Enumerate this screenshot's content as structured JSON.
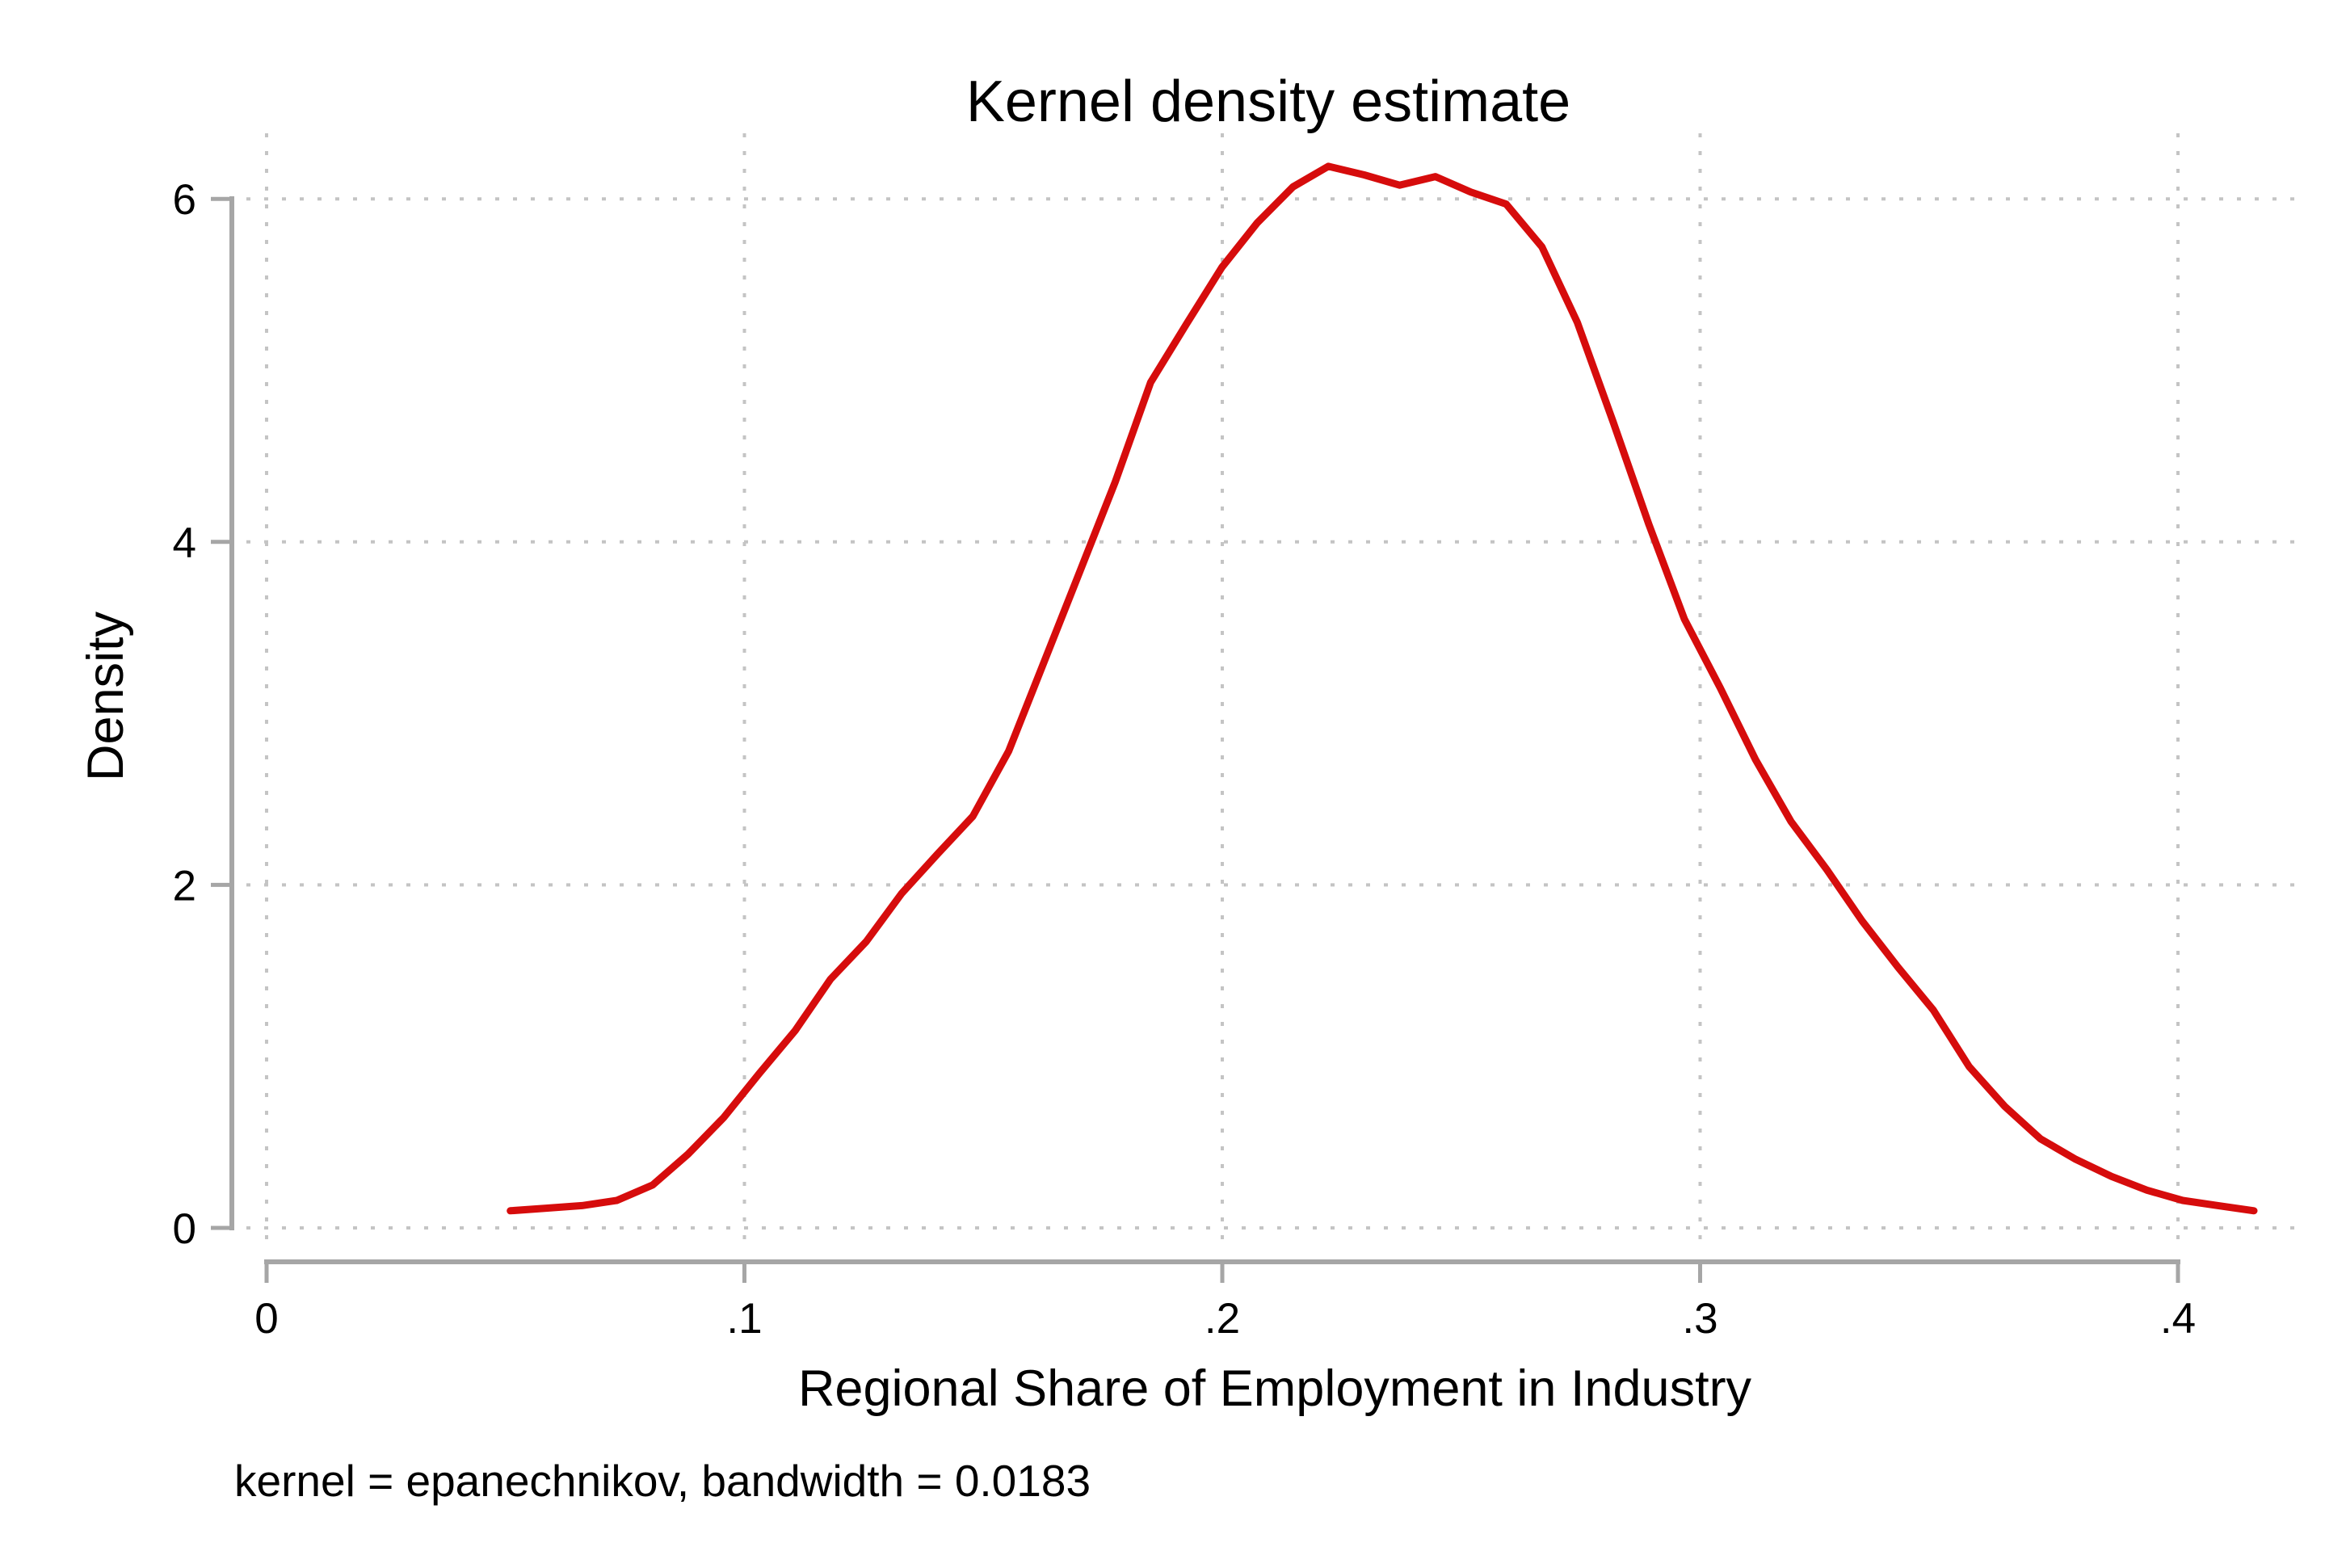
{
  "title": "Kernel density estimate",
  "x_axis": {
    "title": "Regional Share of Employment in Industry",
    "ticks": [
      {
        "value": 0.0,
        "label": "0"
      },
      {
        "value": 0.1,
        "label": ".1"
      },
      {
        "value": 0.2,
        "label": ".2"
      },
      {
        "value": 0.3,
        "label": ".3"
      },
      {
        "value": 0.4,
        "label": ".4"
      }
    ]
  },
  "y_axis": {
    "title": "Density",
    "ticks": [
      {
        "value": 0,
        "label": "0"
      },
      {
        "value": 2,
        "label": "2"
      },
      {
        "value": 4,
        "label": "4"
      },
      {
        "value": 6,
        "label": "6"
      }
    ]
  },
  "footnote": "kernel = epanechnikov, bandwidth = 0.0183",
  "colors": {
    "line": "#d60c0c",
    "axis": "#a6a6a6",
    "grid": "#c4c4c4",
    "text": "#000000",
    "background": "#ffffff"
  },
  "chart_data": {
    "type": "line",
    "title": "Kernel density estimate",
    "xlabel": "Regional Share of Employment in Industry",
    "ylabel": "Density",
    "xlim": [
      0,
      0.42
    ],
    "ylim": [
      0,
      6.4
    ],
    "grid": true,
    "legend": "none",
    "kernel": "epanechnikov",
    "bandwidth": 0.0183,
    "series_name": "kdensity",
    "points": [
      [
        0.051,
        0.1
      ],
      [
        0.0585,
        0.115
      ],
      [
        0.066,
        0.13
      ],
      [
        0.0733,
        0.16
      ],
      [
        0.0808,
        0.25
      ],
      [
        0.0882,
        0.43
      ],
      [
        0.0957,
        0.645
      ],
      [
        0.1031,
        0.9
      ],
      [
        0.1106,
        1.15
      ],
      [
        0.118,
        1.45
      ],
      [
        0.1255,
        1.67
      ],
      [
        0.1329,
        1.95
      ],
      [
        0.1404,
        2.18
      ],
      [
        0.1478,
        2.4
      ],
      [
        0.1553,
        2.78
      ],
      [
        0.1627,
        3.3
      ],
      [
        0.1701,
        3.82
      ],
      [
        0.1776,
        4.35
      ],
      [
        0.185,
        4.93
      ],
      [
        0.1925,
        5.27
      ],
      [
        0.1999,
        5.6
      ],
      [
        0.2073,
        5.86
      ],
      [
        0.2148,
        6.07
      ],
      [
        0.2222,
        6.19
      ],
      [
        0.2297,
        6.14
      ],
      [
        0.2371,
        6.08
      ],
      [
        0.2446,
        6.13
      ],
      [
        0.252,
        6.04
      ],
      [
        0.2594,
        5.97
      ],
      [
        0.2669,
        5.72
      ],
      [
        0.2743,
        5.28
      ],
      [
        0.2818,
        4.7
      ],
      [
        0.2893,
        4.1
      ],
      [
        0.2967,
        3.55
      ],
      [
        0.3042,
        3.15
      ],
      [
        0.3116,
        2.73
      ],
      [
        0.319,
        2.37
      ],
      [
        0.3265,
        2.09
      ],
      [
        0.3339,
        1.79
      ],
      [
        0.3414,
        1.52
      ],
      [
        0.3488,
        1.27
      ],
      [
        0.3563,
        0.94
      ],
      [
        0.3637,
        0.71
      ],
      [
        0.3712,
        0.52
      ],
      [
        0.3786,
        0.4
      ],
      [
        0.3861,
        0.3
      ],
      [
        0.3935,
        0.22
      ],
      [
        0.401,
        0.16
      ],
      [
        0.4084,
        0.13
      ],
      [
        0.4159,
        0.1
      ]
    ]
  }
}
